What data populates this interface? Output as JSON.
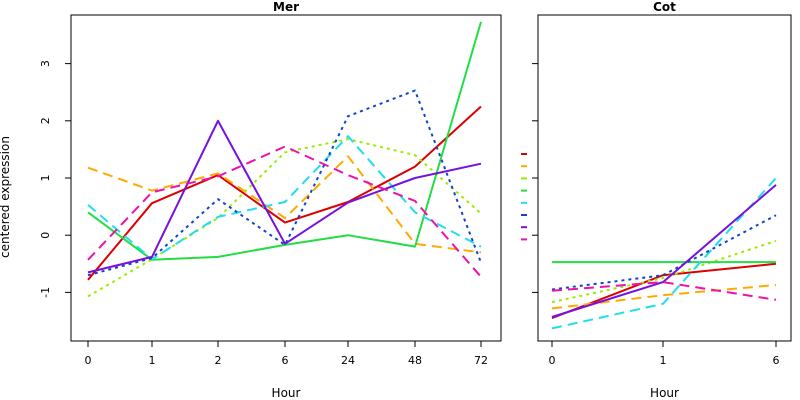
{
  "chart_data": [
    {
      "type": "line",
      "title": "Mer",
      "xlabel": "Hour",
      "ylabel": "centered expression",
      "categories": [
        "0",
        "1",
        "2",
        "6",
        "24",
        "48",
        "72"
      ],
      "ylim": [
        -1.85,
        3.85
      ],
      "yticks": [
        -1,
        0,
        1,
        2,
        3
      ],
      "legend": "none",
      "grid": false,
      "series": [
        {
          "color": "#DD0000",
          "dash": "solid",
          "values": [
            -0.78,
            0.56,
            1.05,
            0.22,
            0.58,
            1.2,
            2.25
          ]
        },
        {
          "color": "#FFAA00",
          "dash": "dashed",
          "values": [
            1.18,
            0.78,
            1.08,
            0.3,
            1.38,
            -0.15,
            -0.3
          ]
        },
        {
          "color": "#99EE00",
          "dash": "dotted",
          "values": [
            -1.07,
            -0.42,
            0.3,
            1.45,
            1.68,
            1.4,
            0.38
          ]
        },
        {
          "color": "#22DD44",
          "dash": "solid",
          "values": [
            0.4,
            -0.43,
            -0.38,
            -0.17,
            0.0,
            -0.2,
            3.73
          ]
        },
        {
          "color": "#22DDEE",
          "dash": "dashed",
          "values": [
            0.53,
            -0.42,
            0.32,
            0.58,
            1.73,
            0.4,
            -0.2
          ]
        },
        {
          "color": "#1144CC",
          "dash": "dotted",
          "values": [
            -0.7,
            -0.4,
            0.63,
            -0.17,
            2.08,
            2.53,
            -0.48
          ]
        },
        {
          "color": "#7711DD",
          "dash": "solid",
          "values": [
            -0.65,
            -0.38,
            2.0,
            -0.15,
            0.57,
            1.0,
            1.25
          ]
        },
        {
          "color": "#EE11AA",
          "dash": "dashed",
          "values": [
            -0.43,
            0.75,
            1.03,
            1.55,
            1.05,
            0.6,
            -0.73
          ]
        }
      ]
    },
    {
      "type": "line",
      "title": "Cot",
      "xlabel": "Hour",
      "ylabel": "",
      "categories": [
        "0",
        "1",
        "6"
      ],
      "ylim": [
        -1.85,
        3.85
      ],
      "legend": "left",
      "grid": false,
      "series": [
        {
          "color": "#DD0000",
          "dash": "solid",
          "values": [
            -1.45,
            -0.7,
            -0.5
          ]
        },
        {
          "color": "#FFAA00",
          "dash": "dashed",
          "values": [
            -1.28,
            -1.05,
            -0.87
          ]
        },
        {
          "color": "#99EE00",
          "dash": "dotted",
          "values": [
            -1.17,
            -0.75,
            -0.1
          ]
        },
        {
          "color": "#22DD44",
          "dash": "solid",
          "values": [
            -0.47,
            -0.47,
            -0.47
          ]
        },
        {
          "color": "#22DDEE",
          "dash": "dashed",
          "values": [
            -1.63,
            -1.2,
            1.0
          ]
        },
        {
          "color": "#1144CC",
          "dash": "dotted",
          "values": [
            -0.95,
            -0.7,
            0.35
          ]
        },
        {
          "color": "#7711DD",
          "dash": "solid",
          "values": [
            -1.43,
            -0.82,
            0.88
          ]
        },
        {
          "color": "#EE11AA",
          "dash": "dashed",
          "values": [
            -0.97,
            -0.82,
            -1.13
          ]
        }
      ]
    }
  ]
}
